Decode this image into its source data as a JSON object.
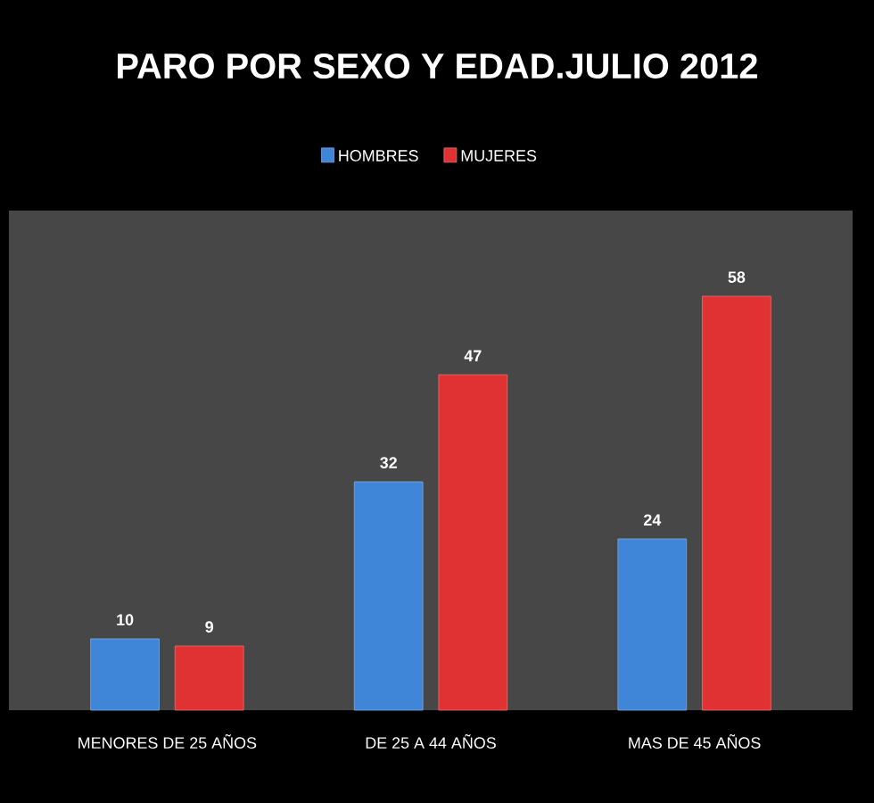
{
  "chart_data": {
    "type": "bar",
    "title": "PARO POR SEXO Y EDAD.JULIO 2012",
    "categories": [
      "MENORES DE 25 AÑOS",
      "DE 25 A 44 AÑOS",
      "MAS DE 45 AÑOS"
    ],
    "series": [
      {
        "name": "HOMBRES",
        "color": "#3f86d8",
        "values": [
          10,
          32,
          24
        ]
      },
      {
        "name": "MUJERES",
        "color": "#e03232",
        "values": [
          9,
          47,
          58
        ]
      }
    ],
    "ylim": [
      0,
      70
    ],
    "data_labels": true,
    "legend": "top"
  }
}
